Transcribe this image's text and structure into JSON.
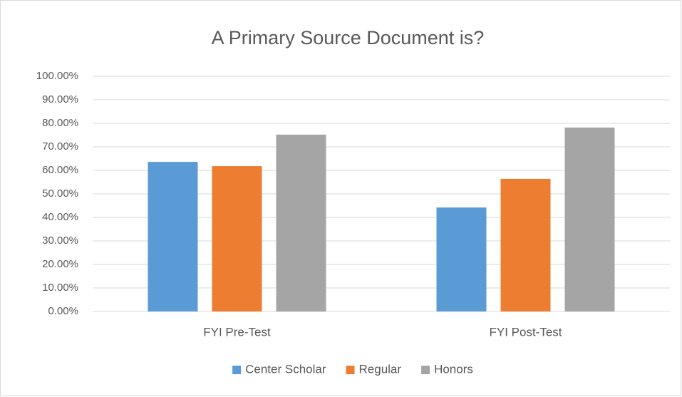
{
  "chart_data": {
    "type": "bar",
    "title": "A Primary Source Document is?",
    "categories": [
      "FYI Pre-Test",
      "FYI Post-Test"
    ],
    "series": [
      {
        "name": "Center Scholar",
        "color": "#5b9bd5",
        "values": [
          63.6,
          44.2
        ]
      },
      {
        "name": "Regular",
        "color": "#ed7d31",
        "values": [
          61.8,
          56.4
        ]
      },
      {
        "name": "Honors",
        "color": "#a5a5a5",
        "values": [
          75.2,
          78.2
        ]
      }
    ],
    "ylim": [
      0,
      100
    ],
    "yticks": [
      {
        "value": 0,
        "label": "0.00%"
      },
      {
        "value": 10,
        "label": "10.00%"
      },
      {
        "value": 20,
        "label": "20.00%"
      },
      {
        "value": 30,
        "label": "30.00%"
      },
      {
        "value": 40,
        "label": "40.00%"
      },
      {
        "value": 50,
        "label": "50.00%"
      },
      {
        "value": 60,
        "label": "60.00%"
      },
      {
        "value": 70,
        "label": "70.00%"
      },
      {
        "value": 80,
        "label": "80.00%"
      },
      {
        "value": 90,
        "label": "90.00%"
      },
      {
        "value": 100,
        "label": "100.00%"
      }
    ],
    "grid": true,
    "legend": "bottom"
  }
}
